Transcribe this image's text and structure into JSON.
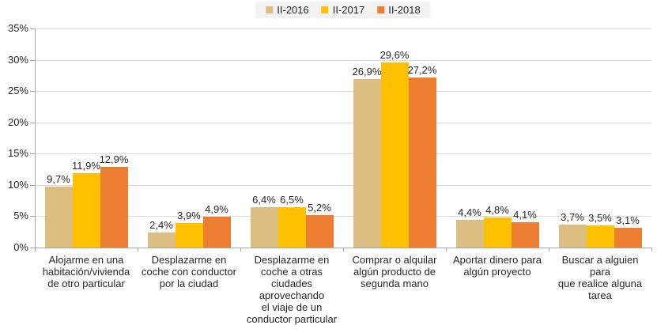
{
  "chart_data": {
    "type": "bar",
    "title": "",
    "categories": [
      "Alojarme en una habitación/vivienda de otro particular",
      "Desplazarme en coche con conductor por la ciudad",
      "Desplazarme en coche a otras ciudades aprovechando el viaje de un conductor particular",
      "Comprar o alquilar algún producto de segunda mano",
      "Aportar dinero para algún proyecto",
      "Buscar a alguien para que realice alguna tarea"
    ],
    "categories_wrapped": [
      "Alojarme en una\nhabitación/vivienda\nde otro particular",
      "Desplazarme en\ncoche con conductor\npor la ciudad",
      "Desplazarme en\ncoche a otras\nciudades\naprovechando\nel viaje de un\nconductor particular",
      "Comprar o alquilar\nalgún producto de\nsegunda mano",
      "Aportar dinero para\nalgún proyecto",
      "Buscar a alguien para\nque realice alguna\ntarea"
    ],
    "series": [
      {
        "name": "II-2016",
        "color": "#DCBE83",
        "values": [
          9.7,
          2.4,
          6.4,
          26.9,
          4.4,
          3.7
        ],
        "labels": [
          "9,7%",
          "2,4%",
          "6,4%",
          "26,9%",
          "4,4%",
          "3,7%"
        ]
      },
      {
        "name": "II-2017",
        "color": "#FFC000",
        "values": [
          11.9,
          3.9,
          6.5,
          29.6,
          4.8,
          3.5
        ],
        "labels": [
          "11,9%",
          "3,9%",
          "6,5%",
          "29,6%",
          "4,8%",
          "3,5%"
        ]
      },
      {
        "name": "II-2018",
        "color": "#ED7D31",
        "values": [
          12.9,
          4.9,
          5.2,
          27.2,
          4.1,
          3.1
        ],
        "labels": [
          "12,9%",
          "4,9%",
          "5,2%",
          "27,2%",
          "4,1%",
          "3,1%"
        ]
      }
    ],
    "y_axis": {
      "min": 0,
      "max": 35,
      "step": 5,
      "tick_labels": [
        "0%",
        "5%",
        "10%",
        "15%",
        "20%",
        "25%",
        "30%",
        "35%"
      ]
    },
    "grid": true,
    "value_labels": true,
    "legend_position": "top",
    "palette": {
      "grid": "#D9D9D9",
      "axis": "#A6A6A6",
      "text": "#262626",
      "legend_bg": "#F2F2F2",
      "background": "#FFFFFF"
    }
  }
}
